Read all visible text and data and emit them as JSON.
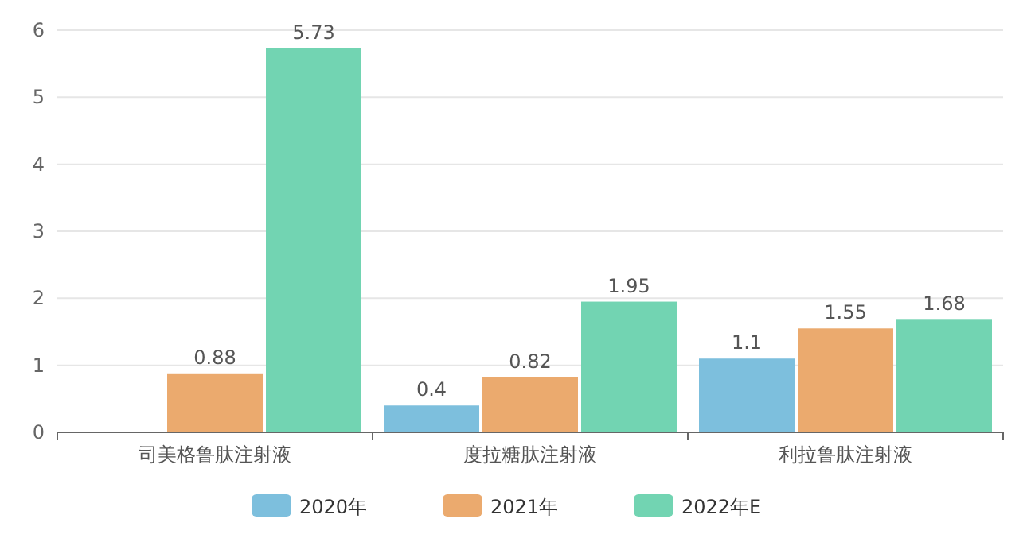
{
  "chart_data": {
    "type": "bar",
    "categories": [
      "司美格鲁肽注射液",
      "度拉糖肽注射液",
      "利拉鲁肽注射液"
    ],
    "series": [
      {
        "name": "2020年",
        "color": "#7dbfdd",
        "values": [
          null,
          0.4,
          1.1
        ]
      },
      {
        "name": "2021年",
        "color": "#ebaa6e",
        "values": [
          0.88,
          0.82,
          1.55
        ]
      },
      {
        "name": "2022年E",
        "color": "#72d4b2",
        "values": [
          5.73,
          1.95,
          1.68
        ]
      }
    ],
    "ylim": [
      0,
      6
    ],
    "yticks": [
      0,
      1,
      2,
      3,
      4,
      5,
      6
    ],
    "grid": "y",
    "data_labels": true,
    "legend": "bottom"
  }
}
